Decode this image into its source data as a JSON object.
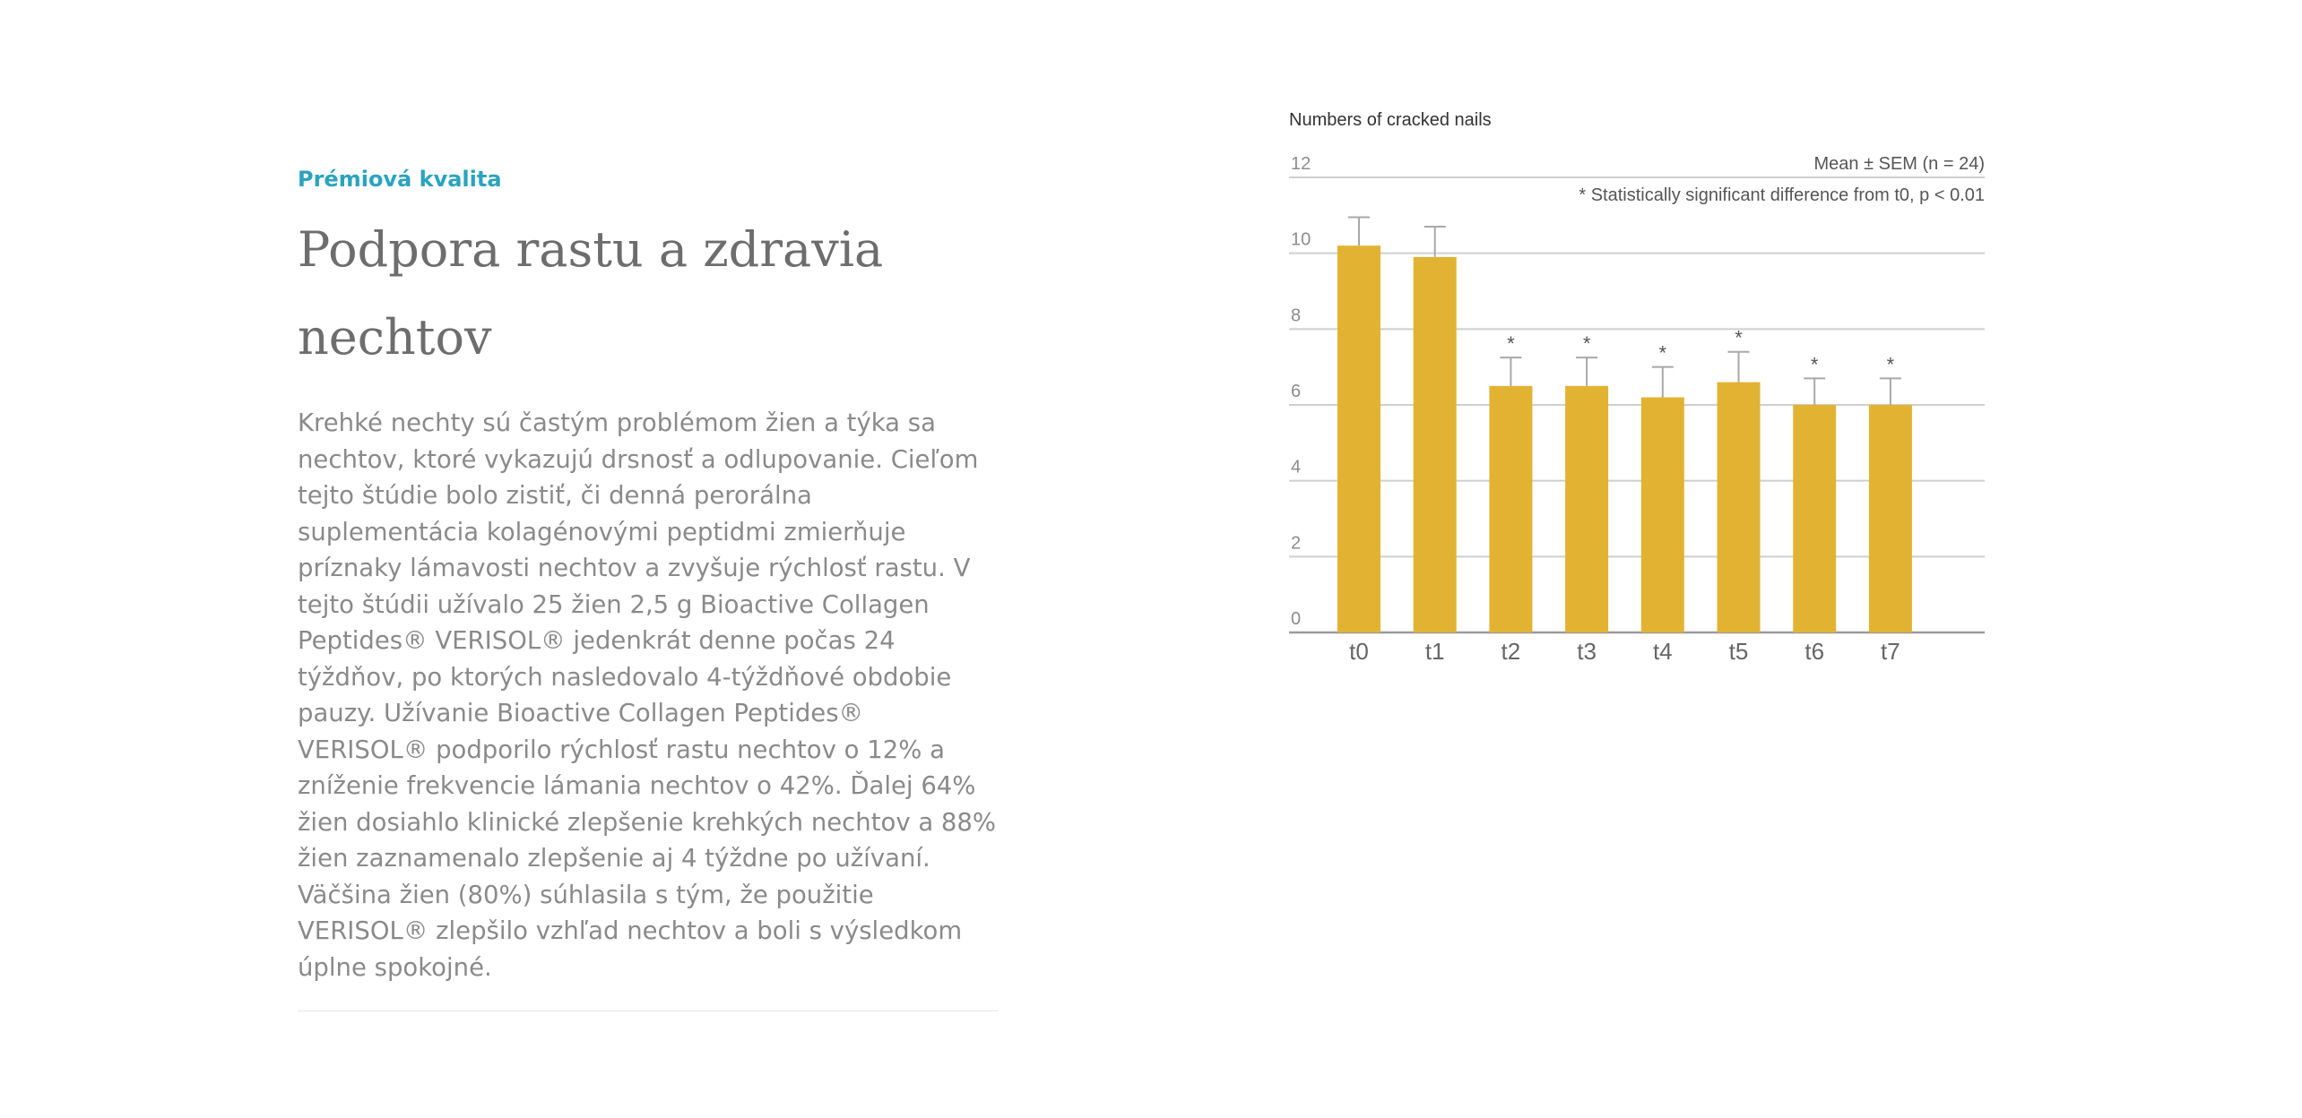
{
  "article": {
    "eyebrow": "Prémiová kvalita",
    "title": "Podpora rastu a zdravia nechtov",
    "body": "Krehké nechty sú častým problémom žien a týka sa nechtov, ktoré vykazujú drsnosť a odlupovanie. Cieľom tejto štúdie bolo zistiť, či denná perorálna suplementácia kolagénovými peptidmi zmierňuje príznaky lámavosti nechtov a zvyšuje rýchlosť rastu. V tejto štúdii užívalo 25 žien 2,5 g Bioactive Collagen Peptides®  VERISOL® jedenkrát denne počas 24 týždňov, po ktorých nasledovalo 4-týždňové obdobie pauzy. Užívanie Bioactive Collagen Peptides®  VERISOL® podporilo rýchlosť rastu nechtov o 12% a zníženie frekvencie lámania nechtov o 42%. Ďalej 64% žien dosiahlo klinické zlepšenie  krehkých nechtov a 88% žien zaznamenalo zlepšenie aj 4 týždne po užívaní. Väčšina žien (80%) súhlasila s tým, že použitie VERISOL® zlepšilo vzhľad nechtov a boli s výsledkom úplne spokojné."
  },
  "chart_data": {
    "type": "bar",
    "title": "Numbers of cracked nails",
    "annotations": [
      "Mean ± SEM (n = 24)",
      "* Statistically significant difference from t0, p < 0.01"
    ],
    "categories": [
      "t0",
      "t1",
      "t2",
      "t3",
      "t4",
      "t5",
      "t6",
      "t7"
    ],
    "values": [
      10.2,
      9.9,
      6.5,
      6.5,
      6.2,
      6.6,
      6.0,
      6.0
    ],
    "errors": [
      0.75,
      0.8,
      0.75,
      0.75,
      0.8,
      0.8,
      0.7,
      0.7
    ],
    "significant": [
      false,
      false,
      true,
      true,
      true,
      true,
      true,
      true
    ],
    "significance_marker": "*",
    "ylim": [
      0,
      12
    ],
    "yticks": [
      "0",
      "2",
      "4",
      "6",
      "8",
      "10",
      "12"
    ],
    "grid": true,
    "bar_color": "#e2b332"
  }
}
